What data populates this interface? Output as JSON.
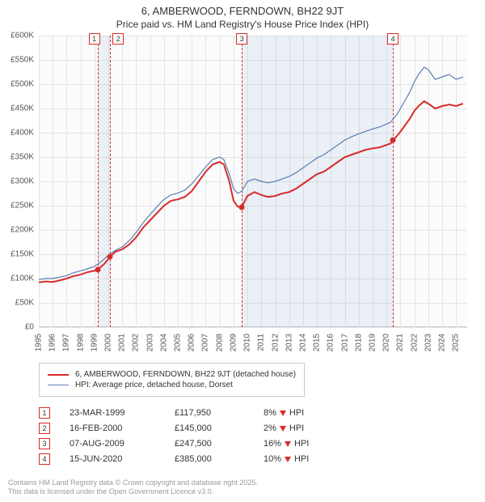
{
  "title": "6, AMBERWOOD, FERNDOWN, BH22 9JT",
  "subtitle": "Price paid vs. HM Land Registry's House Price Index (HPI)",
  "chart": {
    "type": "line",
    "background_color": "#fbfbfb",
    "grid_color": "#e4e4e4",
    "axis_color": "#c8c8c8",
    "text_color": "#555555",
    "x": {
      "min": 1995,
      "max": 2025.8,
      "tick_step": 1,
      "labels": [
        "1995",
        "1996",
        "1997",
        "1998",
        "1999",
        "2000",
        "2001",
        "2002",
        "2003",
        "2004",
        "2005",
        "2006",
        "2007",
        "2008",
        "2009",
        "2010",
        "2011",
        "2012",
        "2013",
        "2014",
        "2015",
        "2016",
        "2017",
        "2018",
        "2019",
        "2020",
        "2021",
        "2022",
        "2023",
        "2024",
        "2025"
      ]
    },
    "y": {
      "min": 0,
      "max": 600000,
      "tick_step": 50000,
      "labels": [
        "£0",
        "£50K",
        "£100K",
        "£150K",
        "£200K",
        "£250K",
        "£300K",
        "£350K",
        "£400K",
        "£450K",
        "£500K",
        "£550K",
        "£600K"
      ]
    },
    "shaded_ranges": [
      {
        "from": 1999.22,
        "to": 2000.13
      },
      {
        "from": 2009.6,
        "to": 2020.46
      }
    ],
    "vertical_markers": [
      {
        "id": 1,
        "x": 1999.22,
        "color": "#d82c2c"
      },
      {
        "id": 2,
        "x": 2000.13,
        "color": "#d82c2c"
      },
      {
        "id": 3,
        "x": 2009.6,
        "color": "#d82c2c"
      },
      {
        "id": 4,
        "x": 2020.46,
        "color": "#d82c2c"
      }
    ],
    "series": [
      {
        "name": "6, AMBERWOOD, FERNDOWN, BH22 9JT (detached house)",
        "color": "#d82c2c",
        "line_width": 2,
        "points": [
          [
            1995.0,
            92000
          ],
          [
            1995.5,
            94000
          ],
          [
            1996.0,
            93000
          ],
          [
            1996.5,
            96000
          ],
          [
            1997.0,
            100000
          ],
          [
            1997.5,
            105000
          ],
          [
            1998.0,
            108000
          ],
          [
            1998.5,
            113000
          ],
          [
            1999.0,
            116000
          ],
          [
            1999.22,
            117950
          ],
          [
            1999.7,
            130000
          ],
          [
            2000.13,
            145000
          ],
          [
            2000.5,
            155000
          ],
          [
            2001.0,
            160000
          ],
          [
            2001.5,
            170000
          ],
          [
            2002.0,
            185000
          ],
          [
            2002.5,
            205000
          ],
          [
            2003.0,
            220000
          ],
          [
            2003.5,
            235000
          ],
          [
            2004.0,
            250000
          ],
          [
            2004.5,
            260000
          ],
          [
            2005.0,
            263000
          ],
          [
            2005.5,
            268000
          ],
          [
            2006.0,
            280000
          ],
          [
            2006.5,
            300000
          ],
          [
            2007.0,
            320000
          ],
          [
            2007.5,
            335000
          ],
          [
            2008.0,
            340000
          ],
          [
            2008.3,
            335000
          ],
          [
            2008.7,
            300000
          ],
          [
            2009.0,
            260000
          ],
          [
            2009.3,
            248000
          ],
          [
            2009.6,
            247500
          ],
          [
            2010.0,
            270000
          ],
          [
            2010.5,
            278000
          ],
          [
            2011.0,
            272000
          ],
          [
            2011.5,
            268000
          ],
          [
            2012.0,
            270000
          ],
          [
            2012.5,
            275000
          ],
          [
            2013.0,
            278000
          ],
          [
            2013.5,
            285000
          ],
          [
            2014.0,
            295000
          ],
          [
            2014.5,
            305000
          ],
          [
            2015.0,
            315000
          ],
          [
            2015.5,
            320000
          ],
          [
            2016.0,
            330000
          ],
          [
            2016.5,
            340000
          ],
          [
            2017.0,
            350000
          ],
          [
            2017.5,
            355000
          ],
          [
            2018.0,
            360000
          ],
          [
            2018.5,
            365000
          ],
          [
            2019.0,
            368000
          ],
          [
            2019.5,
            370000
          ],
          [
            2020.0,
            375000
          ],
          [
            2020.3,
            378000
          ],
          [
            2020.46,
            385000
          ],
          [
            2020.8,
            395000
          ],
          [
            2021.2,
            410000
          ],
          [
            2021.7,
            430000
          ],
          [
            2022.0,
            445000
          ],
          [
            2022.3,
            455000
          ],
          [
            2022.7,
            465000
          ],
          [
            2023.0,
            460000
          ],
          [
            2023.5,
            450000
          ],
          [
            2024.0,
            455000
          ],
          [
            2024.5,
            458000
          ],
          [
            2025.0,
            455000
          ],
          [
            2025.5,
            460000
          ]
        ],
        "dots": [
          [
            1999.22,
            117950
          ],
          [
            2000.13,
            145000
          ],
          [
            2009.6,
            247500
          ],
          [
            2020.46,
            385000
          ]
        ]
      },
      {
        "name": "HPI: Average price, detached house, Dorset",
        "color": "#5b7fb4",
        "line_width": 1.2,
        "points": [
          [
            1995.0,
            98000
          ],
          [
            1995.5,
            100000
          ],
          [
            1996.0,
            100000
          ],
          [
            1996.5,
            103000
          ],
          [
            1997.0,
            106000
          ],
          [
            1997.5,
            112000
          ],
          [
            1998.0,
            116000
          ],
          [
            1998.5,
            120000
          ],
          [
            1999.0,
            125000
          ],
          [
            1999.5,
            135000
          ],
          [
            2000.0,
            148000
          ],
          [
            2000.5,
            158000
          ],
          [
            2001.0,
            165000
          ],
          [
            2001.5,
            178000
          ],
          [
            2002.0,
            195000
          ],
          [
            2002.5,
            215000
          ],
          [
            2003.0,
            232000
          ],
          [
            2003.5,
            248000
          ],
          [
            2004.0,
            263000
          ],
          [
            2004.5,
            272000
          ],
          [
            2005.0,
            276000
          ],
          [
            2005.5,
            282000
          ],
          [
            2006.0,
            295000
          ],
          [
            2006.5,
            312000
          ],
          [
            2007.0,
            330000
          ],
          [
            2007.5,
            345000
          ],
          [
            2008.0,
            350000
          ],
          [
            2008.3,
            345000
          ],
          [
            2008.7,
            315000
          ],
          [
            2009.0,
            285000
          ],
          [
            2009.3,
            275000
          ],
          [
            2009.6,
            280000
          ],
          [
            2010.0,
            300000
          ],
          [
            2010.5,
            305000
          ],
          [
            2011.0,
            300000
          ],
          [
            2011.5,
            297000
          ],
          [
            2012.0,
            300000
          ],
          [
            2012.5,
            305000
          ],
          [
            2013.0,
            310000
          ],
          [
            2013.5,
            318000
          ],
          [
            2014.0,
            328000
          ],
          [
            2014.5,
            338000
          ],
          [
            2015.0,
            348000
          ],
          [
            2015.5,
            355000
          ],
          [
            2016.0,
            365000
          ],
          [
            2016.5,
            375000
          ],
          [
            2017.0,
            385000
          ],
          [
            2017.5,
            392000
          ],
          [
            2018.0,
            398000
          ],
          [
            2018.5,
            403000
          ],
          [
            2019.0,
            408000
          ],
          [
            2019.5,
            412000
          ],
          [
            2020.0,
            418000
          ],
          [
            2020.3,
            422000
          ],
          [
            2020.46,
            428000
          ],
          [
            2020.8,
            440000
          ],
          [
            2021.2,
            460000
          ],
          [
            2021.7,
            485000
          ],
          [
            2022.0,
            505000
          ],
          [
            2022.3,
            520000
          ],
          [
            2022.7,
            535000
          ],
          [
            2023.0,
            530000
          ],
          [
            2023.5,
            510000
          ],
          [
            2024.0,
            515000
          ],
          [
            2024.5,
            520000
          ],
          [
            2025.0,
            510000
          ],
          [
            2025.5,
            515000
          ]
        ]
      }
    ]
  },
  "legend": {
    "items": [
      {
        "label": "6, AMBERWOOD, FERNDOWN, BH22 9JT (detached house)",
        "color": "#d82c2c",
        "width": 2
      },
      {
        "label": "HPI: Average price, detached house, Dorset",
        "color": "#5b7fb4",
        "width": 1.2
      }
    ]
  },
  "events": [
    {
      "id": "1",
      "date": "23-MAR-1999",
      "price": "£117,950",
      "diff_pct": "8%",
      "direction": "down",
      "suffix": "HPI"
    },
    {
      "id": "2",
      "date": "16-FEB-2000",
      "price": "£145,000",
      "diff_pct": "2%",
      "direction": "down",
      "suffix": "HPI"
    },
    {
      "id": "3",
      "date": "07-AUG-2009",
      "price": "£247,500",
      "diff_pct": "16%",
      "direction": "down",
      "suffix": "HPI"
    },
    {
      "id": "4",
      "date": "15-JUN-2020",
      "price": "£385,000",
      "diff_pct": "10%",
      "direction": "down",
      "suffix": "HPI"
    }
  ],
  "footnote_line1": "Contains HM Land Registry data © Crown copyright and database right 2025.",
  "footnote_line2": "This data is licensed under the Open Government Licence v3.0.",
  "colors": {
    "marker_border": "#d82c2c",
    "arrow": "#d82c2c",
    "footnote": "#9a9a9a"
  }
}
